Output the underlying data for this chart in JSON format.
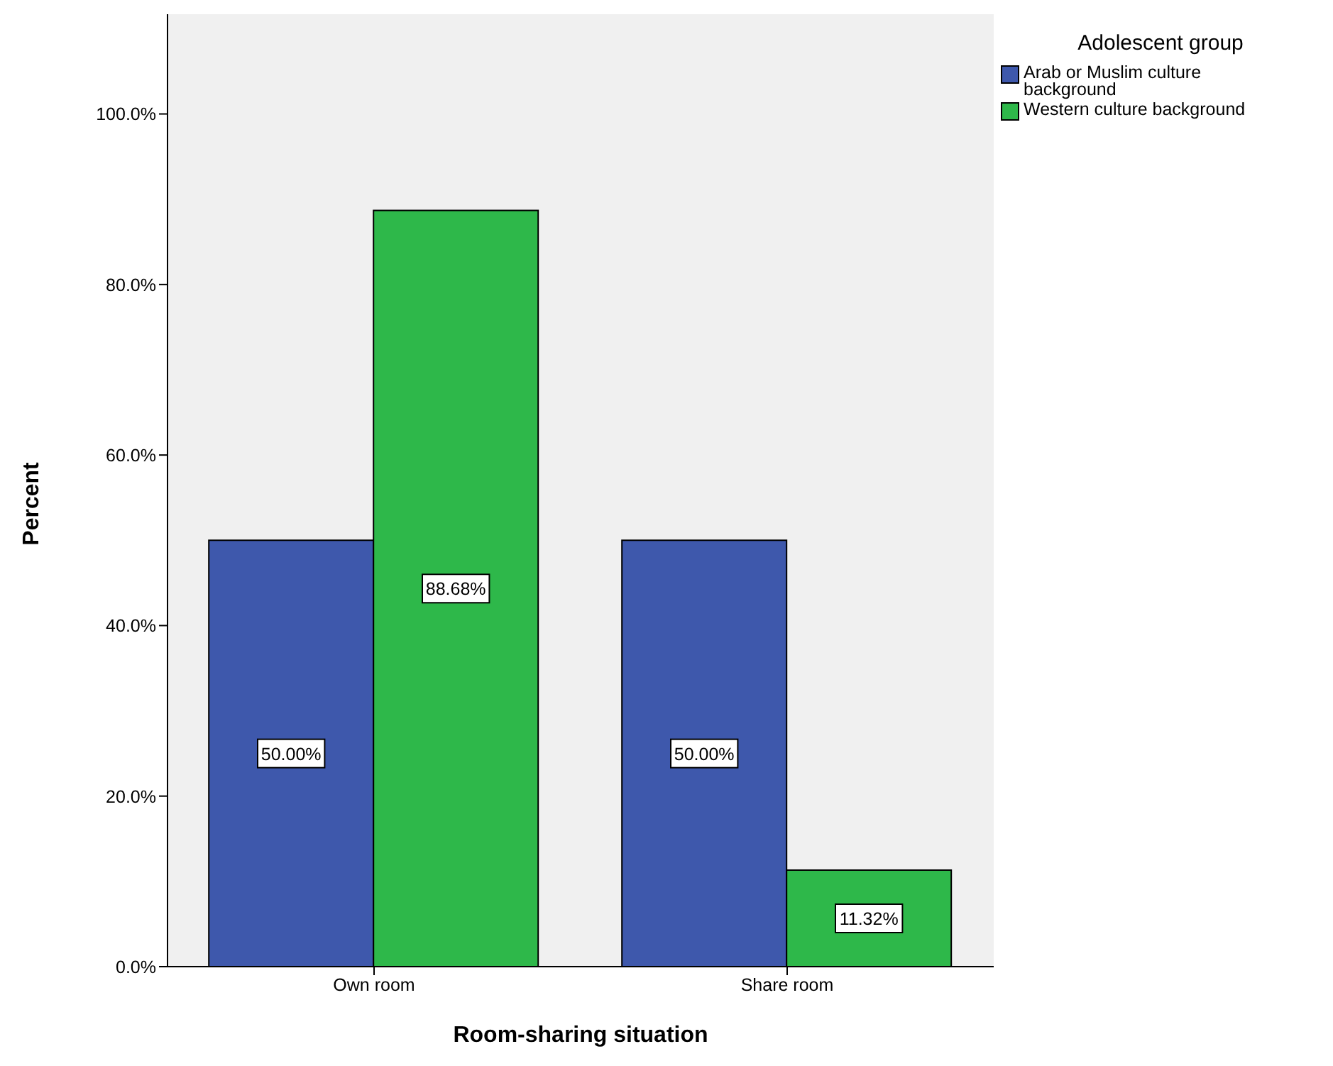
{
  "chart_data": {
    "type": "bar",
    "xlabel": "Room-sharing situation",
    "ylabel": "Percent",
    "legend_title": "Adolescent group",
    "categories": [
      "Own room",
      "Share room"
    ],
    "series": [
      {
        "name": "Arab or Muslim culture background",
        "color": "#3e58ac",
        "values": [
          50.0,
          50.0
        ],
        "value_labels": [
          "50.00%",
          "50.00%"
        ]
      },
      {
        "name": "Western culture background",
        "color": "#2eb84a",
        "values": [
          88.68,
          11.32
        ],
        "value_labels": [
          "88.68%",
          "11.32%"
        ]
      }
    ],
    "ylim": [
      0,
      111.7
    ],
    "yticks": [
      {
        "value": 0,
        "label": "0.0%"
      },
      {
        "value": 20,
        "label": "20.0%"
      },
      {
        "value": 40,
        "label": "40.0%"
      },
      {
        "value": 60,
        "label": "60.0%"
      },
      {
        "value": 80,
        "label": "80.0%"
      },
      {
        "value": 100,
        "label": "100.0%"
      }
    ],
    "legend": "top right"
  }
}
